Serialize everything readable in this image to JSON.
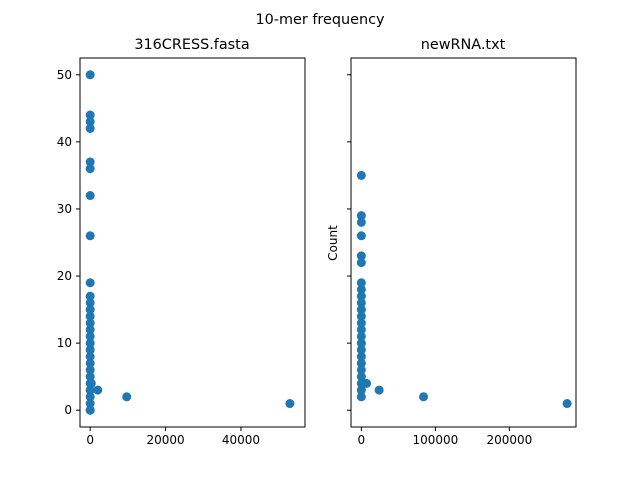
{
  "suptitle": "10-mer frequency",
  "marker_color": "#1f77b4",
  "chart_data": [
    {
      "type": "scatter",
      "title": "316CRESS.fasta",
      "xlabel": "",
      "ylabel": "",
      "xlim": [
        -2700,
        57000
      ],
      "ylim": [
        -2.5,
        52.5
      ],
      "grid": false,
      "xticks": [
        0,
        20000,
        40000
      ],
      "xtick_labels": [
        "0",
        "20000",
        "40000"
      ],
      "yticks": [
        0,
        10,
        20,
        30,
        40,
        50
      ],
      "ytick_labels": [
        "0",
        "10",
        "20",
        "30",
        "40",
        "50"
      ],
      "x": [
        0,
        0,
        0,
        0,
        0,
        0,
        0,
        0,
        0,
        0,
        0,
        0,
        0,
        0,
        0,
        0,
        0,
        0,
        0,
        0,
        0,
        0,
        0,
        0,
        0,
        0,
        0,
        0,
        300,
        2000,
        9700,
        53000
      ],
      "y": [
        50,
        44,
        43,
        42,
        37,
        36,
        32,
        26,
        19,
        17,
        16,
        15,
        14,
        13,
        12,
        11,
        10,
        9,
        8,
        7,
        6,
        5,
        4,
        3,
        2,
        1,
        0,
        0,
        4,
        3,
        2,
        1
      ]
    },
    {
      "type": "scatter",
      "title": "newRNA.txt",
      "xlabel": "",
      "ylabel": "Count",
      "xlim": [
        -14000,
        290000
      ],
      "ylim": [
        -2.5,
        52.5
      ],
      "grid": false,
      "xticks": [
        0,
        100000,
        200000
      ],
      "xtick_labels": [
        "0",
        "100000",
        "200000"
      ],
      "x": [
        0,
        0,
        0,
        0,
        0,
        0,
        0,
        0,
        0,
        0,
        0,
        0,
        0,
        0,
        0,
        0,
        0,
        0,
        0,
        0,
        0,
        0,
        0,
        0,
        7000,
        24000,
        84000,
        278000
      ],
      "y": [
        35,
        29,
        28,
        26,
        23,
        22,
        19,
        18,
        17,
        16,
        15,
        14,
        13,
        12,
        11,
        10,
        9,
        8,
        7,
        6,
        5,
        4,
        3,
        2,
        4,
        3,
        2,
        1
      ]
    }
  ]
}
